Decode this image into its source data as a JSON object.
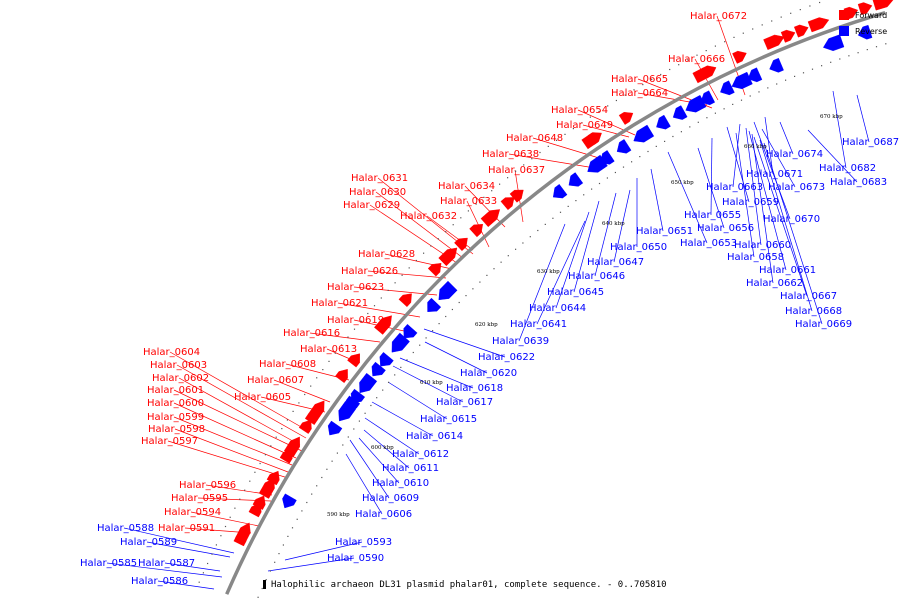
{
  "caption": "Halophilic archaeon DL31 plasmid phalar01, complete sequence. - 0..705810",
  "legend": [
    {
      "label": "Forward",
      "color": "#ff0000"
    },
    {
      "label": "Reverse",
      "color": "#0000ff"
    }
  ],
  "colors": {
    "forward": "#ff0000",
    "reverse": "#0000ff",
    "backbone": "#888888"
  },
  "ticks": [
    "590 kbp",
    "600 kbp",
    "610 kbp",
    "620 kbp",
    "630 kbp",
    "640 kbp",
    "650 kbp",
    "660 kbp",
    "670 kbp"
  ],
  "forward_genes": [
    "Halar_0672",
    "Halar_0666",
    "Halar_0665",
    "Halar_0664",
    "Halar_0654",
    "Halar_0649",
    "Halar_0648",
    "Halar_0638",
    "Halar_0637",
    "Halar_0634",
    "Halar_0633",
    "Halar_0632",
    "Halar_0631",
    "Halar_0630",
    "Halar_0629",
    "Halar_0628",
    "Halar_0626",
    "Halar_0623",
    "Halar_0621",
    "Halar_0619",
    "Halar_0616",
    "Halar_0613",
    "Halar_0608",
    "Halar_0607",
    "Halar_0605",
    "Halar_0604",
    "Halar_0603",
    "Halar_0602",
    "Halar_0601",
    "Halar_0600",
    "Halar_0599",
    "Halar_0598",
    "Halar_0597",
    "Halar_0596",
    "Halar_0595",
    "Halar_0594",
    "Halar_0591"
  ],
  "reverse_genes": [
    "Halar_0674",
    "Halar_0671",
    "Halar_0673",
    "Halar_0663",
    "Halar_0659",
    "Halar_0655",
    "Halar_0656",
    "Halar_0653",
    "Halar_0651",
    "Halar_0650",
    "Halar_0647",
    "Halar_0646",
    "Halar_0645",
    "Halar_0644",
    "Halar_0641",
    "Halar_0639",
    "Halar_0622",
    "Halar_0620",
    "Halar_0618",
    "Halar_0617",
    "Halar_0615",
    "Halar_0614",
    "Halar_0612",
    "Halar_0611",
    "Halar_0610",
    "Halar_0609",
    "Halar_0606",
    "Halar_0593",
    "Halar_0590",
    "Halar_0588",
    "Halar_0589",
    "Halar_0587",
    "Halar_0585",
    "Halar_0586",
    "Halar_0687",
    "Halar_0682",
    "Halar_0683",
    "Halar_0670",
    "Halar_0660",
    "Halar_0658",
    "Halar_0661",
    "Halar_0662",
    "Halar_0667",
    "Halar_0668",
    "Halar_0669"
  ]
}
